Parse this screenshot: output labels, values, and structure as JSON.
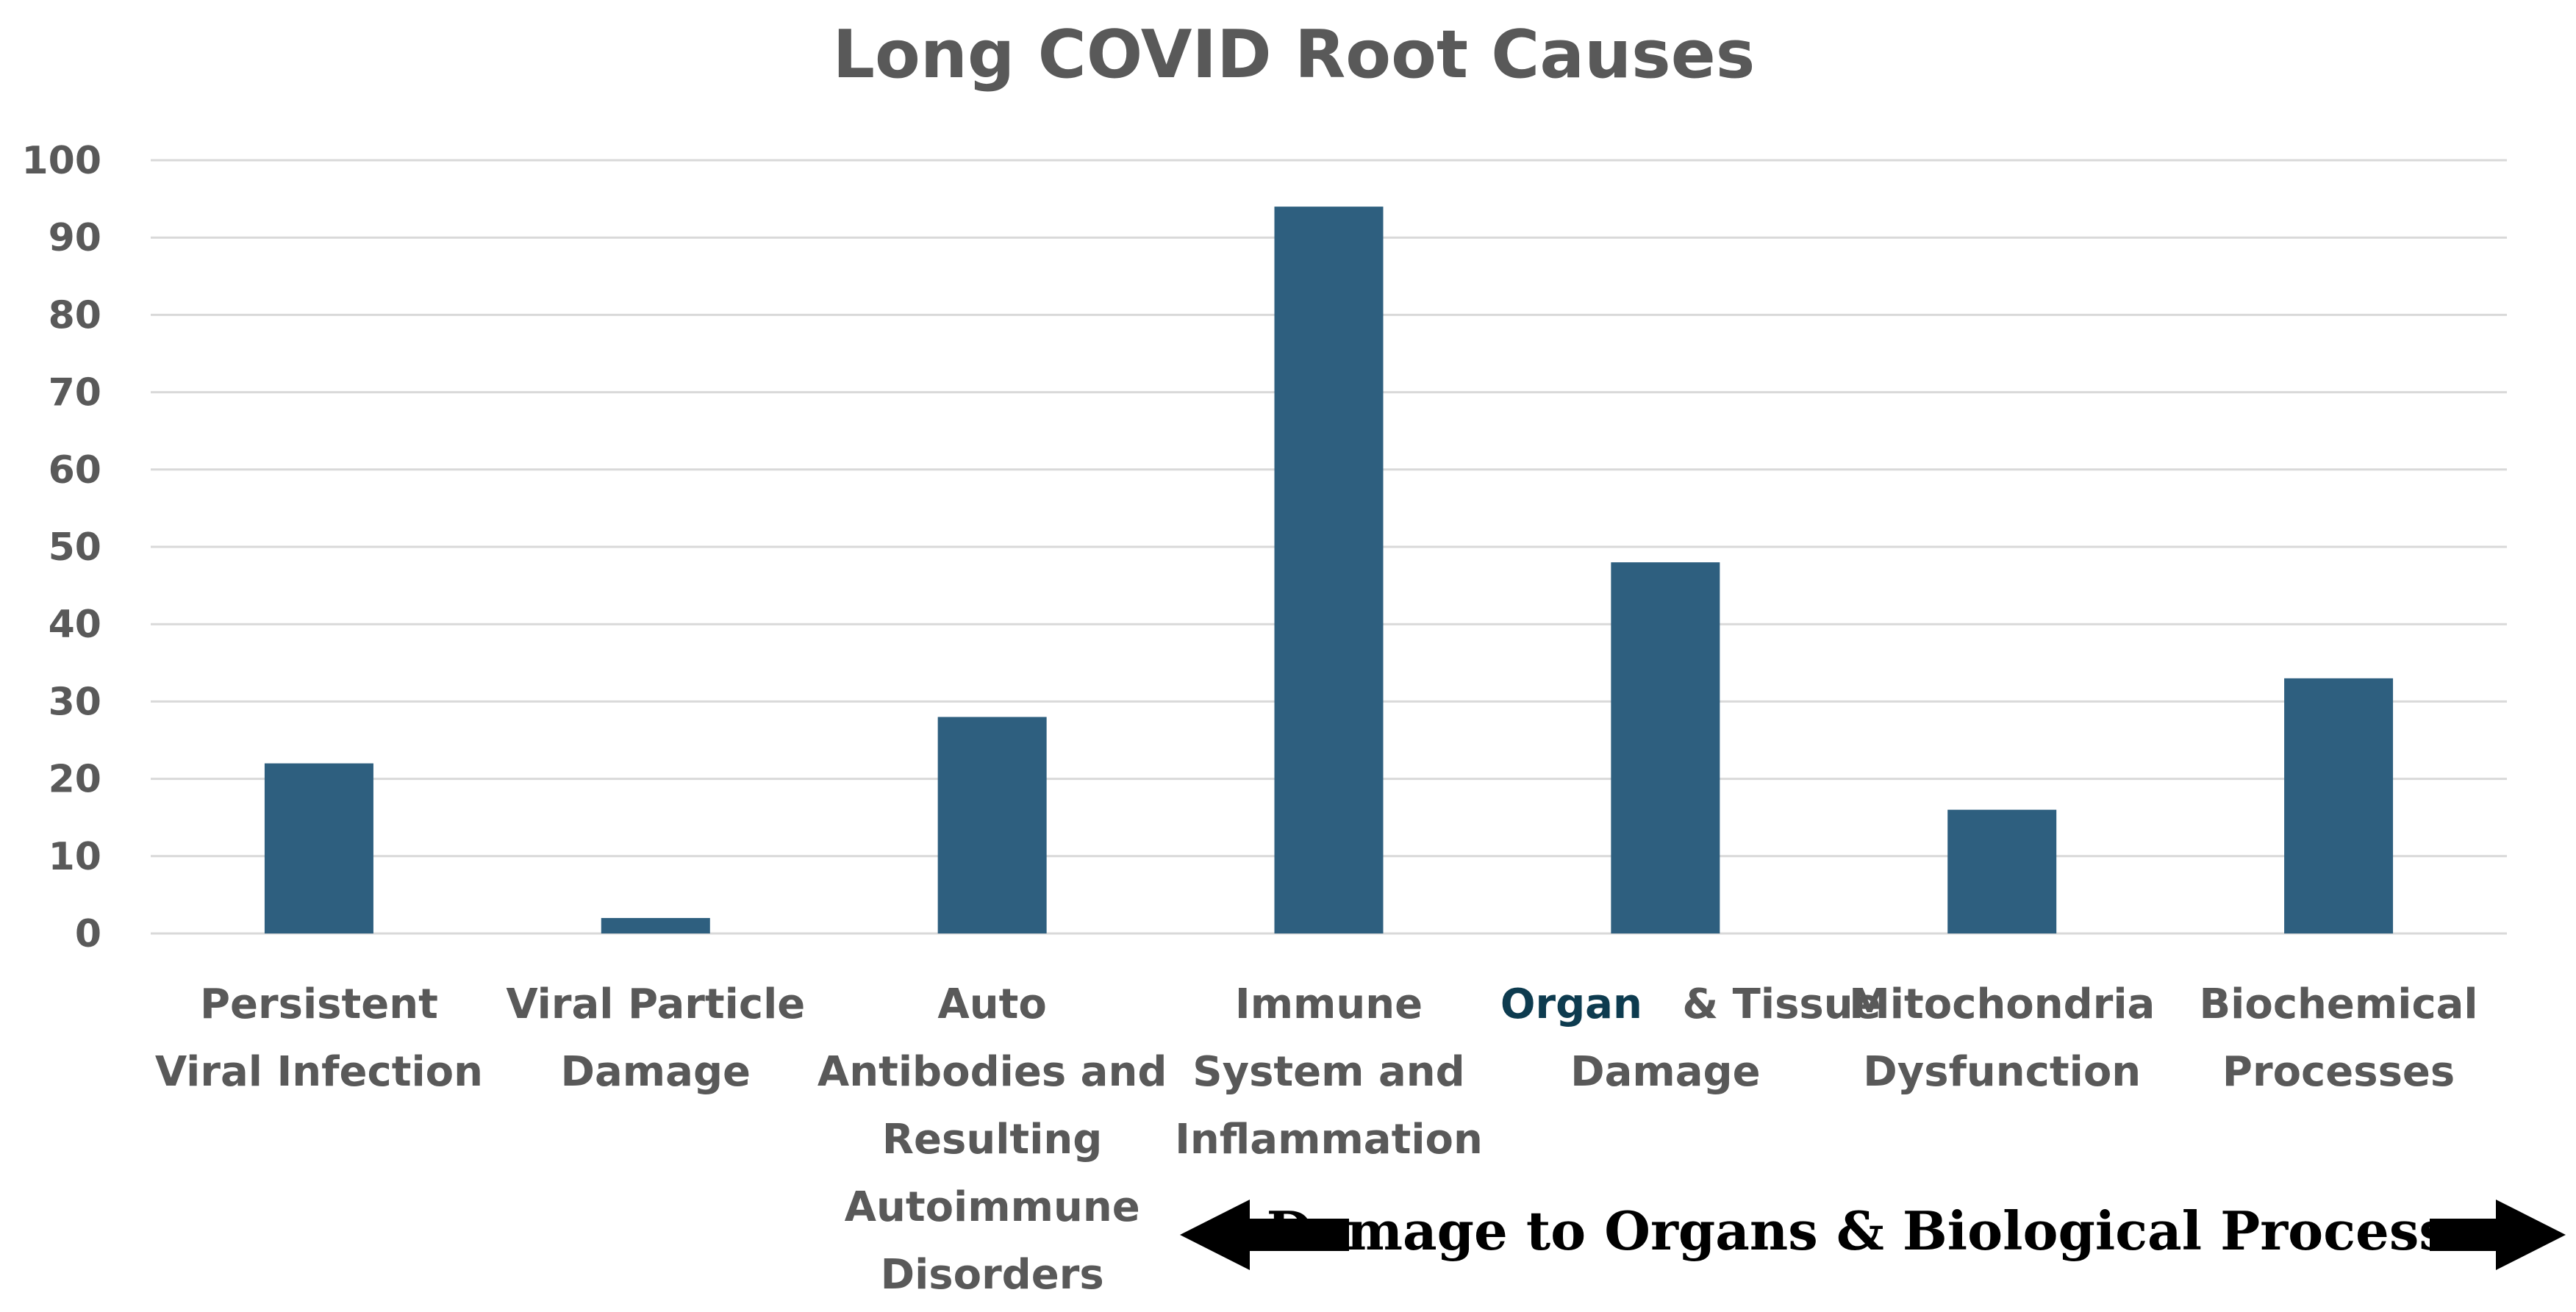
{
  "chart_data": {
    "type": "bar",
    "title": "Long COVID Root Causes",
    "xlabel": "",
    "ylabel": "",
    "ylim": [
      0,
      100
    ],
    "yticks": [
      0,
      10,
      20,
      30,
      40,
      50,
      60,
      70,
      80,
      90,
      100
    ],
    "grid": true,
    "legend": "none",
    "categories": [
      "Persistent Viral Infection",
      "Viral Particle Damage",
      "Auto Antibodies and Resulting Autoimmune Disorders",
      "Immune System and Inflammation",
      "Organ & Tissue Damage",
      "Mitochondria Dysfunction",
      "Biochemical Processes"
    ],
    "category_lines": [
      [
        "Persistent",
        "Viral Infection"
      ],
      [
        "Viral Particle",
        "Damage"
      ],
      [
        "Auto",
        "Antibodies and",
        "Resulting",
        "Autoimmune",
        "Disorders"
      ],
      [
        "Immune",
        "System and",
        "Inflammation"
      ],
      [
        "Organ",
        "& Tissue",
        "Damage"
      ],
      [
        "Mitochondria",
        "Dysfunction"
      ],
      [
        "Biochemical",
        "Processes"
      ]
    ],
    "values": [
      22,
      2,
      28,
      94,
      48,
      16,
      33
    ],
    "annotation": "Damage to Organs & Biological Processes",
    "colors": {
      "bar": "#2E5F7F",
      "grid": "#D9D9D9",
      "text": "#595959",
      "organ_word": "#0D3B4F",
      "arrow": "#000000"
    }
  }
}
